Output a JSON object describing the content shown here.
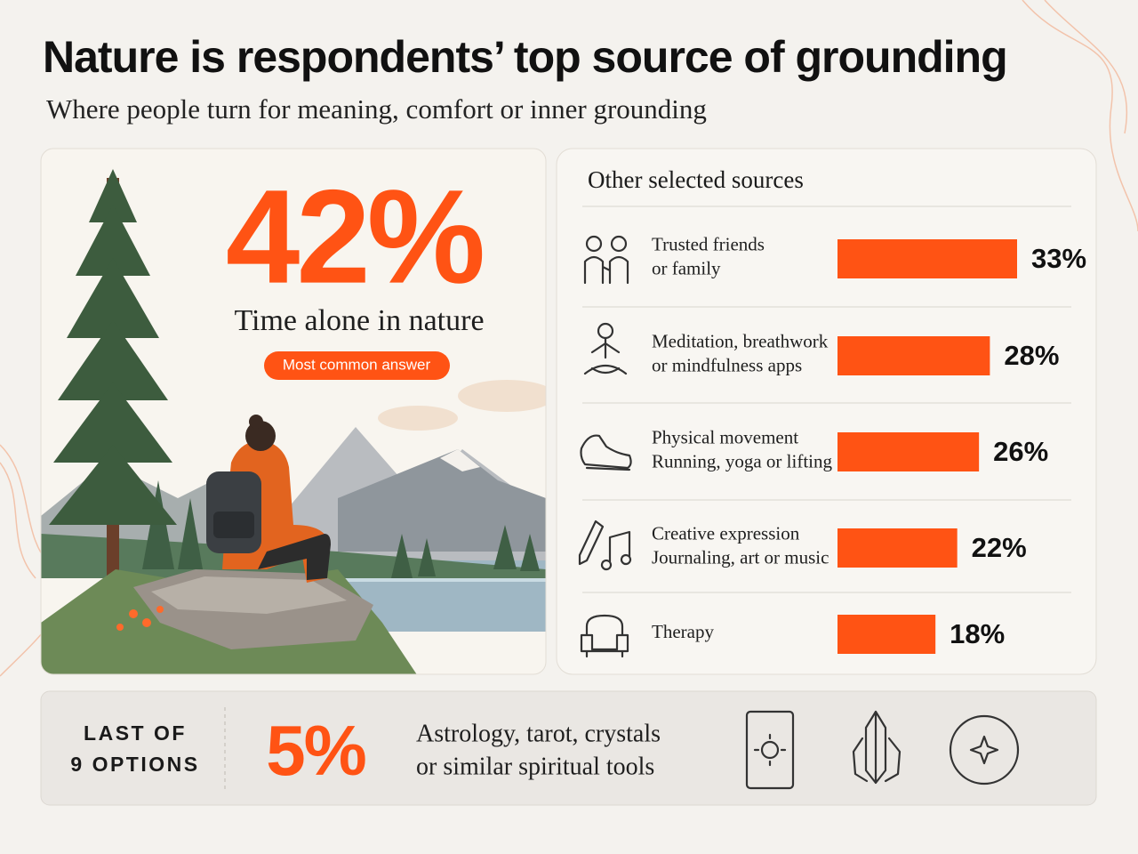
{
  "header": {
    "title": "Nature is respondents’ top source of grounding",
    "subtitle": "Where people turn for meaning, comfort or inner grounding"
  },
  "highlight": {
    "stat": "42%",
    "label": "Time alone in nature",
    "badge": "Most common answer"
  },
  "chart_data": {
    "type": "bar",
    "title": "Other selected sources",
    "categories": [
      [
        "Trusted friends",
        "or family"
      ],
      [
        "Meditation, breathwork",
        "or mindfulness apps"
      ],
      [
        "Physical movement",
        "Running, yoga or lifting"
      ],
      [
        "Creative expression",
        "Journaling, art or music"
      ],
      [
        "Therapy"
      ]
    ],
    "values": [
      33,
      28,
      26,
      22,
      18
    ],
    "value_labels": [
      "33%",
      "28%",
      "26%",
      "22%",
      "18%"
    ],
    "color": "#ff5314"
  },
  "footer": {
    "rank": [
      "LAST OF",
      "9 OPTIONS"
    ],
    "stat": "5%",
    "description": [
      "Astrology, tarot, crystals",
      "or similar spiritual tools"
    ]
  }
}
